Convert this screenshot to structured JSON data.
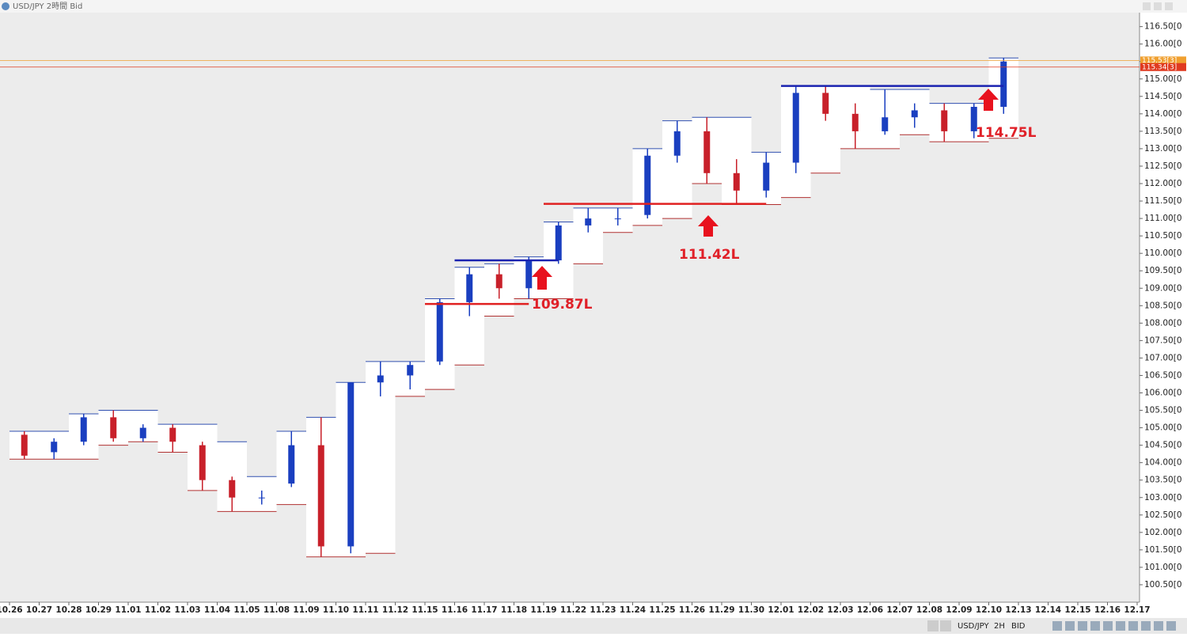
{
  "window": {
    "title": "USD/JPY 2時間 Bid"
  },
  "toolbar": {
    "symbol": "USD/JPY",
    "period": "2H",
    "price_side": "BID"
  },
  "chart_data": {
    "type": "candlestick",
    "categories": [
      "10.26",
      "10.27",
      "10.28",
      "10.29",
      "11.01",
      "11.02",
      "11.03",
      "11.04",
      "11.05",
      "11.08",
      "11.09",
      "11.10",
      "11.11",
      "11.12",
      "11.15",
      "11.16",
      "11.17",
      "11.18",
      "11.19",
      "11.22",
      "11.23",
      "11.24",
      "11.25",
      "11.26",
      "11.29",
      "11.30",
      "12.01",
      "12.02",
      "12.03",
      "12.06",
      "12.07",
      "12.08",
      "12.09",
      "12.10",
      "12.13",
      "12.14",
      "12.15",
      "12.16",
      "12.17"
    ],
    "open": [
      104.8,
      104.3,
      104.6,
      105.3,
      104.7,
      105.0,
      104.5,
      103.5,
      103.0,
      103.4,
      104.5,
      101.6,
      106.3,
      106.5,
      106.9,
      108.6,
      109.4,
      109.0,
      109.8,
      110.8,
      111.0,
      111.1,
      112.8,
      113.5,
      112.3,
      111.8,
      112.6,
      114.6,
      114.0,
      113.5,
      113.9,
      114.1,
      113.5,
      114.2,
      null,
      null,
      null,
      null,
      null
    ],
    "high": [
      104.9,
      104.7,
      105.4,
      105.5,
      105.1,
      105.1,
      104.6,
      103.6,
      103.2,
      104.9,
      105.3,
      106.3,
      106.9,
      106.9,
      108.7,
      109.6,
      109.7,
      109.9,
      110.9,
      111.3,
      111.3,
      113.0,
      113.8,
      113.9,
      112.7,
      112.9,
      114.8,
      114.8,
      114.3,
      114.7,
      114.3,
      114.3,
      114.3,
      115.6,
      null,
      null,
      null,
      null,
      null
    ],
    "low": [
      104.1,
      104.1,
      104.5,
      104.6,
      104.6,
      104.3,
      103.2,
      102.6,
      102.8,
      103.3,
      101.3,
      101.4,
      105.9,
      106.1,
      106.8,
      108.2,
      108.7,
      108.7,
      109.7,
      110.6,
      110.8,
      111.0,
      112.6,
      112.0,
      111.4,
      111.6,
      112.3,
      113.8,
      113.0,
      113.4,
      113.6,
      113.2,
      113.3,
      114.0,
      null,
      null,
      null,
      null,
      null
    ],
    "close": [
      104.2,
      104.6,
      105.3,
      104.7,
      105.0,
      104.6,
      103.5,
      103.0,
      103.0,
      104.5,
      101.6,
      106.3,
      106.5,
      106.8,
      108.6,
      109.4,
      109.0,
      109.8,
      110.8,
      111.0,
      111.0,
      112.8,
      113.5,
      112.3,
      111.8,
      112.6,
      114.6,
      114.0,
      113.5,
      113.9,
      114.1,
      113.5,
      114.2,
      115.5,
      null,
      null,
      null,
      null,
      null
    ],
    "up_color": "#1a3fc0",
    "down_color": "#c8202a",
    "channel": {
      "upper": [
        104.9,
        104.9,
        105.4,
        105.5,
        105.5,
        105.1,
        105.1,
        104.6,
        103.6,
        104.9,
        105.3,
        106.3,
        106.9,
        106.9,
        108.7,
        109.6,
        109.7,
        109.9,
        110.9,
        111.3,
        111.3,
        113.0,
        113.8,
        113.9,
        113.9,
        112.9,
        114.8,
        114.8,
        114.8,
        114.7,
        114.7,
        114.3,
        114.3,
        115.6,
        null,
        null,
        null,
        null,
        null
      ],
      "lower": [
        104.1,
        104.1,
        104.1,
        104.5,
        104.6,
        104.3,
        103.2,
        102.6,
        102.6,
        102.8,
        101.3,
        101.3,
        101.4,
        105.9,
        106.1,
        106.8,
        108.2,
        108.7,
        108.7,
        109.7,
        110.6,
        110.8,
        111.0,
        112.0,
        111.4,
        111.4,
        111.6,
        112.3,
        113.0,
        113.0,
        113.4,
        113.2,
        113.2,
        113.3,
        null,
        null,
        null,
        null,
        null
      ],
      "upper_color": "#3050b0",
      "lower_color": "#b03030"
    },
    "levels": [
      {
        "value": 108.55,
        "from": "11.15",
        "to": "11.18",
        "color": "#e02020"
      },
      {
        "value": 109.8,
        "from": "11.16",
        "to": "11.19",
        "color": "#1a22b0"
      },
      {
        "value": 111.42,
        "from": "11.19",
        "to": "11.30",
        "color": "#e02020"
      },
      {
        "value": 114.8,
        "from": "12.01",
        "to": "12.10",
        "color": "#1a22b0"
      }
    ],
    "annotations": [
      "109.87L",
      "111.42L",
      "114.75L"
    ],
    "price_lines": [
      {
        "value": 115.53,
        "label": "115.53[3]",
        "color": "#f0a030"
      },
      {
        "value": 115.34,
        "label": "115.34[3]",
        "color": "#e03a20"
      }
    ],
    "ylim": [
      100.0,
      116.9
    ],
    "yticks": [
      {
        "value": 100.5,
        "label": "100.50[0"
      },
      {
        "value": 101,
        "label": "101.00[0"
      },
      {
        "value": 101.5,
        "label": "101.50[0"
      },
      {
        "value": 102,
        "label": "102.00[0"
      },
      {
        "value": 102.5,
        "label": "102.50[0"
      },
      {
        "value": 103,
        "label": "103.00[0"
      },
      {
        "value": 103.5,
        "label": "103.50[0"
      },
      {
        "value": 104,
        "label": "104.00[0"
      },
      {
        "value": 104.5,
        "label": "104.50[0"
      },
      {
        "value": 105,
        "label": "105.00[0"
      },
      {
        "value": 105.5,
        "label": "105.50[0"
      },
      {
        "value": 106,
        "label": "106.00[0"
      },
      {
        "value": 106.5,
        "label": "106.50[0"
      },
      {
        "value": 107,
        "label": "107.00[0"
      },
      {
        "value": 107.5,
        "label": "107.50[0"
      },
      {
        "value": 108,
        "label": "108.00[0"
      },
      {
        "value": 108.5,
        "label": "108.50[0"
      },
      {
        "value": 109,
        "label": "109.00[0"
      },
      {
        "value": 109.5,
        "label": "109.50[0"
      },
      {
        "value": 110,
        "label": "110.00[0"
      },
      {
        "value": 110.5,
        "label": "110.50[0"
      },
      {
        "value": 111,
        "label": "111.00[0"
      },
      {
        "value": 111.5,
        "label": "111.50[0"
      },
      {
        "value": 112,
        "label": "112.00[0"
      },
      {
        "value": 112.5,
        "label": "112.50[0"
      },
      {
        "value": 113,
        "label": "113.00[0"
      },
      {
        "value": 113.5,
        "label": "113.50[0"
      },
      {
        "value": 114,
        "label": "114.00[0"
      },
      {
        "value": 114.5,
        "label": "114.50[0"
      },
      {
        "value": 115,
        "label": "115.00[0"
      },
      {
        "value": 115.5,
        "label": "115.50[0"
      },
      {
        "value": 116,
        "label": "116.00[0"
      },
      {
        "value": 116.5,
        "label": "116.50[0"
      }
    ]
  }
}
